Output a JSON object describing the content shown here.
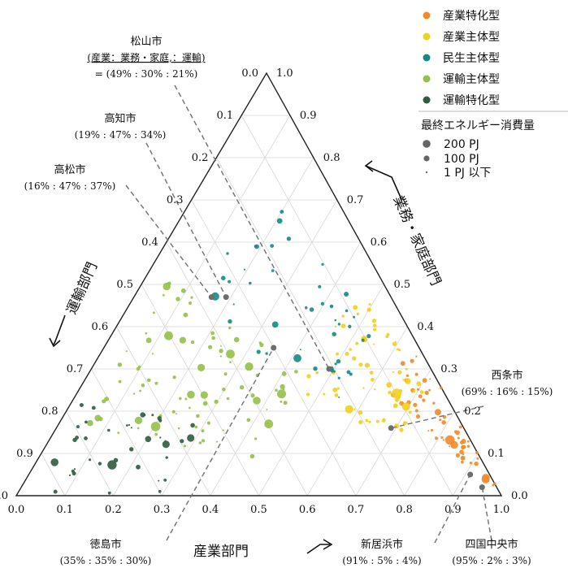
{
  "chart_data": {
    "type": "scatter",
    "subtype": "ternary",
    "axis_titles": {
      "bottom": "産業部門",
      "right": "業務・家庭部門",
      "left": "運輸部門"
    },
    "ticks": [
      "0.0",
      "0.1",
      "0.2",
      "0.3",
      "0.4",
      "0.5",
      "0.6",
      "0.7",
      "0.8",
      "0.9",
      "1.0"
    ],
    "legend": {
      "categories": [
        {
          "name": "産業特化型",
          "color": "#f28a2a"
        },
        {
          "name": "産業主体型",
          "color": "#f4cf1c"
        },
        {
          "name": "民生主体型",
          "color": "#138a86"
        },
        {
          "name": "運輸主体型",
          "color": "#93c047"
        },
        {
          "name": "運輸特化型",
          "color": "#2f5b3f"
        }
      ],
      "size_title": "最終エネルギー消費量",
      "sizes": [
        {
          "label": "200 PJ",
          "radius": 4.8
        },
        {
          "label": "100 PJ",
          "radius": 3.6
        },
        {
          "label": "1 PJ 以下",
          "radius": 1.2
        }
      ]
    },
    "highlighted_cities": [
      {
        "name": "松山市",
        "ratio": "(産業：業務・家庭,：運輸)",
        "ratio2": "= (49% : 30% : 21%)",
        "industry": 0.49,
        "commercial": 0.3,
        "transport": 0.21
      },
      {
        "name": "高知市",
        "ratio": "(19% : 47% : 34%)",
        "industry": 0.19,
        "commercial": 0.47,
        "transport": 0.34
      },
      {
        "name": "高松市",
        "ratio": "(16% : 47% : 37%)",
        "industry": 0.16,
        "commercial": 0.47,
        "transport": 0.37
      },
      {
        "name": "西条市",
        "ratio": "(69% : 16% : 15%)",
        "industry": 0.69,
        "commercial": 0.16,
        "transport": 0.15
      },
      {
        "name": "徳島市",
        "ratio": "(35% : 35% : 30%)",
        "industry": 0.35,
        "commercial": 0.35,
        "transport": 0.3
      },
      {
        "name": "新居浜市",
        "ratio": "(91% : 5% : 4%)",
        "industry": 0.91,
        "commercial": 0.05,
        "transport": 0.04
      },
      {
        "name": "四国中央市",
        "ratio": "(95% : 2% : 3%)",
        "industry": 0.95,
        "commercial": 0.02,
        "transport": 0.03
      }
    ],
    "point_clusters": [
      {
        "category": 0,
        "count": 60,
        "industry": [
          0.62,
          0.98
        ],
        "transport_share": [
          0.0,
          0.35
        ]
      },
      {
        "category": 1,
        "count": 70,
        "industry": [
          0.45,
          0.72
        ],
        "transport_share": [
          0.1,
          0.55
        ]
      },
      {
        "category": 2,
        "count": 45,
        "industry": [
          0.1,
          0.55
        ],
        "transport_share": [
          0.15,
          0.5
        ]
      },
      {
        "category": 3,
        "count": 90,
        "industry": [
          0.05,
          0.45
        ],
        "transport_share": [
          0.45,
          0.85
        ]
      },
      {
        "category": 4,
        "count": 40,
        "industry": [
          0.0,
          0.3
        ],
        "transport_share": [
          0.75,
          1.0
        ]
      }
    ]
  }
}
